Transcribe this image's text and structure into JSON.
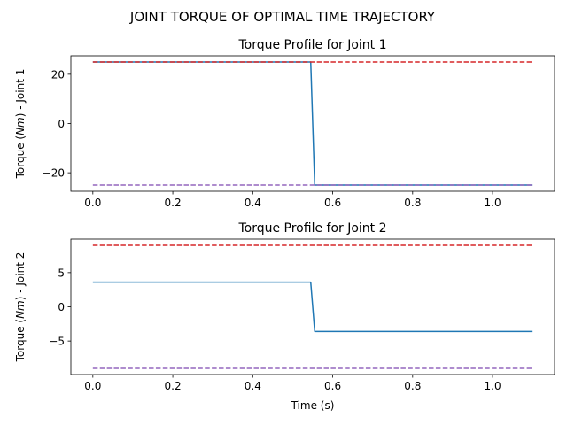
{
  "figure": {
    "suptitle": "JOINT TORQUE OF OPTIMAL TIME TRAJECTORY"
  },
  "chart_data": [
    {
      "type": "line",
      "title": "Torque Profile for Joint 1",
      "xlabel": "",
      "ylabel": "Torque (Nm) - Joint 1",
      "xlim": [
        -0.055,
        1.155
      ],
      "ylim": [
        -27.5,
        27.5
      ],
      "xticks": [
        0.0,
        0.2,
        0.4,
        0.6,
        0.8,
        1.0
      ],
      "xtick_labels": [
        "0.0",
        "0.2",
        "0.4",
        "0.6",
        "0.8",
        "1.0"
      ],
      "yticks": [
        -20,
        0,
        20
      ],
      "ytick_labels": [
        "−20",
        "0",
        "20"
      ],
      "grid": false,
      "series": [
        {
          "role": "torque",
          "color": "#1f77b4",
          "style": "solid",
          "x": [
            0.0,
            0.545,
            0.555,
            1.1
          ],
          "y": [
            25,
            25,
            -25,
            -25
          ]
        },
        {
          "role": "upper-limit",
          "color": "#d62728",
          "style": "dashed",
          "x": [
            0.0,
            1.1
          ],
          "y": [
            25,
            25
          ]
        },
        {
          "role": "lower-limit",
          "color": "#9467bd",
          "style": "dashed",
          "x": [
            0.0,
            1.1
          ],
          "y": [
            -25,
            -25
          ]
        }
      ]
    },
    {
      "type": "line",
      "title": "Torque Profile for Joint 2",
      "xlabel": "Time (s)",
      "ylabel": "Torque (Nm) - Joint 2",
      "xlim": [
        -0.055,
        1.155
      ],
      "ylim": [
        -9.9,
        9.9
      ],
      "xticks": [
        0.0,
        0.2,
        0.4,
        0.6,
        0.8,
        1.0
      ],
      "xtick_labels": [
        "0.0",
        "0.2",
        "0.4",
        "0.6",
        "0.8",
        "1.0"
      ],
      "yticks": [
        -5,
        0,
        5
      ],
      "ytick_labels": [
        "−5",
        "0",
        "5"
      ],
      "grid": false,
      "series": [
        {
          "role": "torque",
          "color": "#1f77b4",
          "style": "solid",
          "x": [
            0.0,
            0.545,
            0.555,
            1.1
          ],
          "y": [
            3.6,
            3.6,
            -3.6,
            -3.6
          ]
        },
        {
          "role": "upper-limit",
          "color": "#d62728",
          "style": "dashed",
          "x": [
            0.0,
            1.1
          ],
          "y": [
            9,
            9
          ]
        },
        {
          "role": "lower-limit",
          "color": "#9467bd",
          "style": "dashed",
          "x": [
            0.0,
            1.1
          ],
          "y": [
            -9,
            -9
          ]
        }
      ]
    }
  ]
}
